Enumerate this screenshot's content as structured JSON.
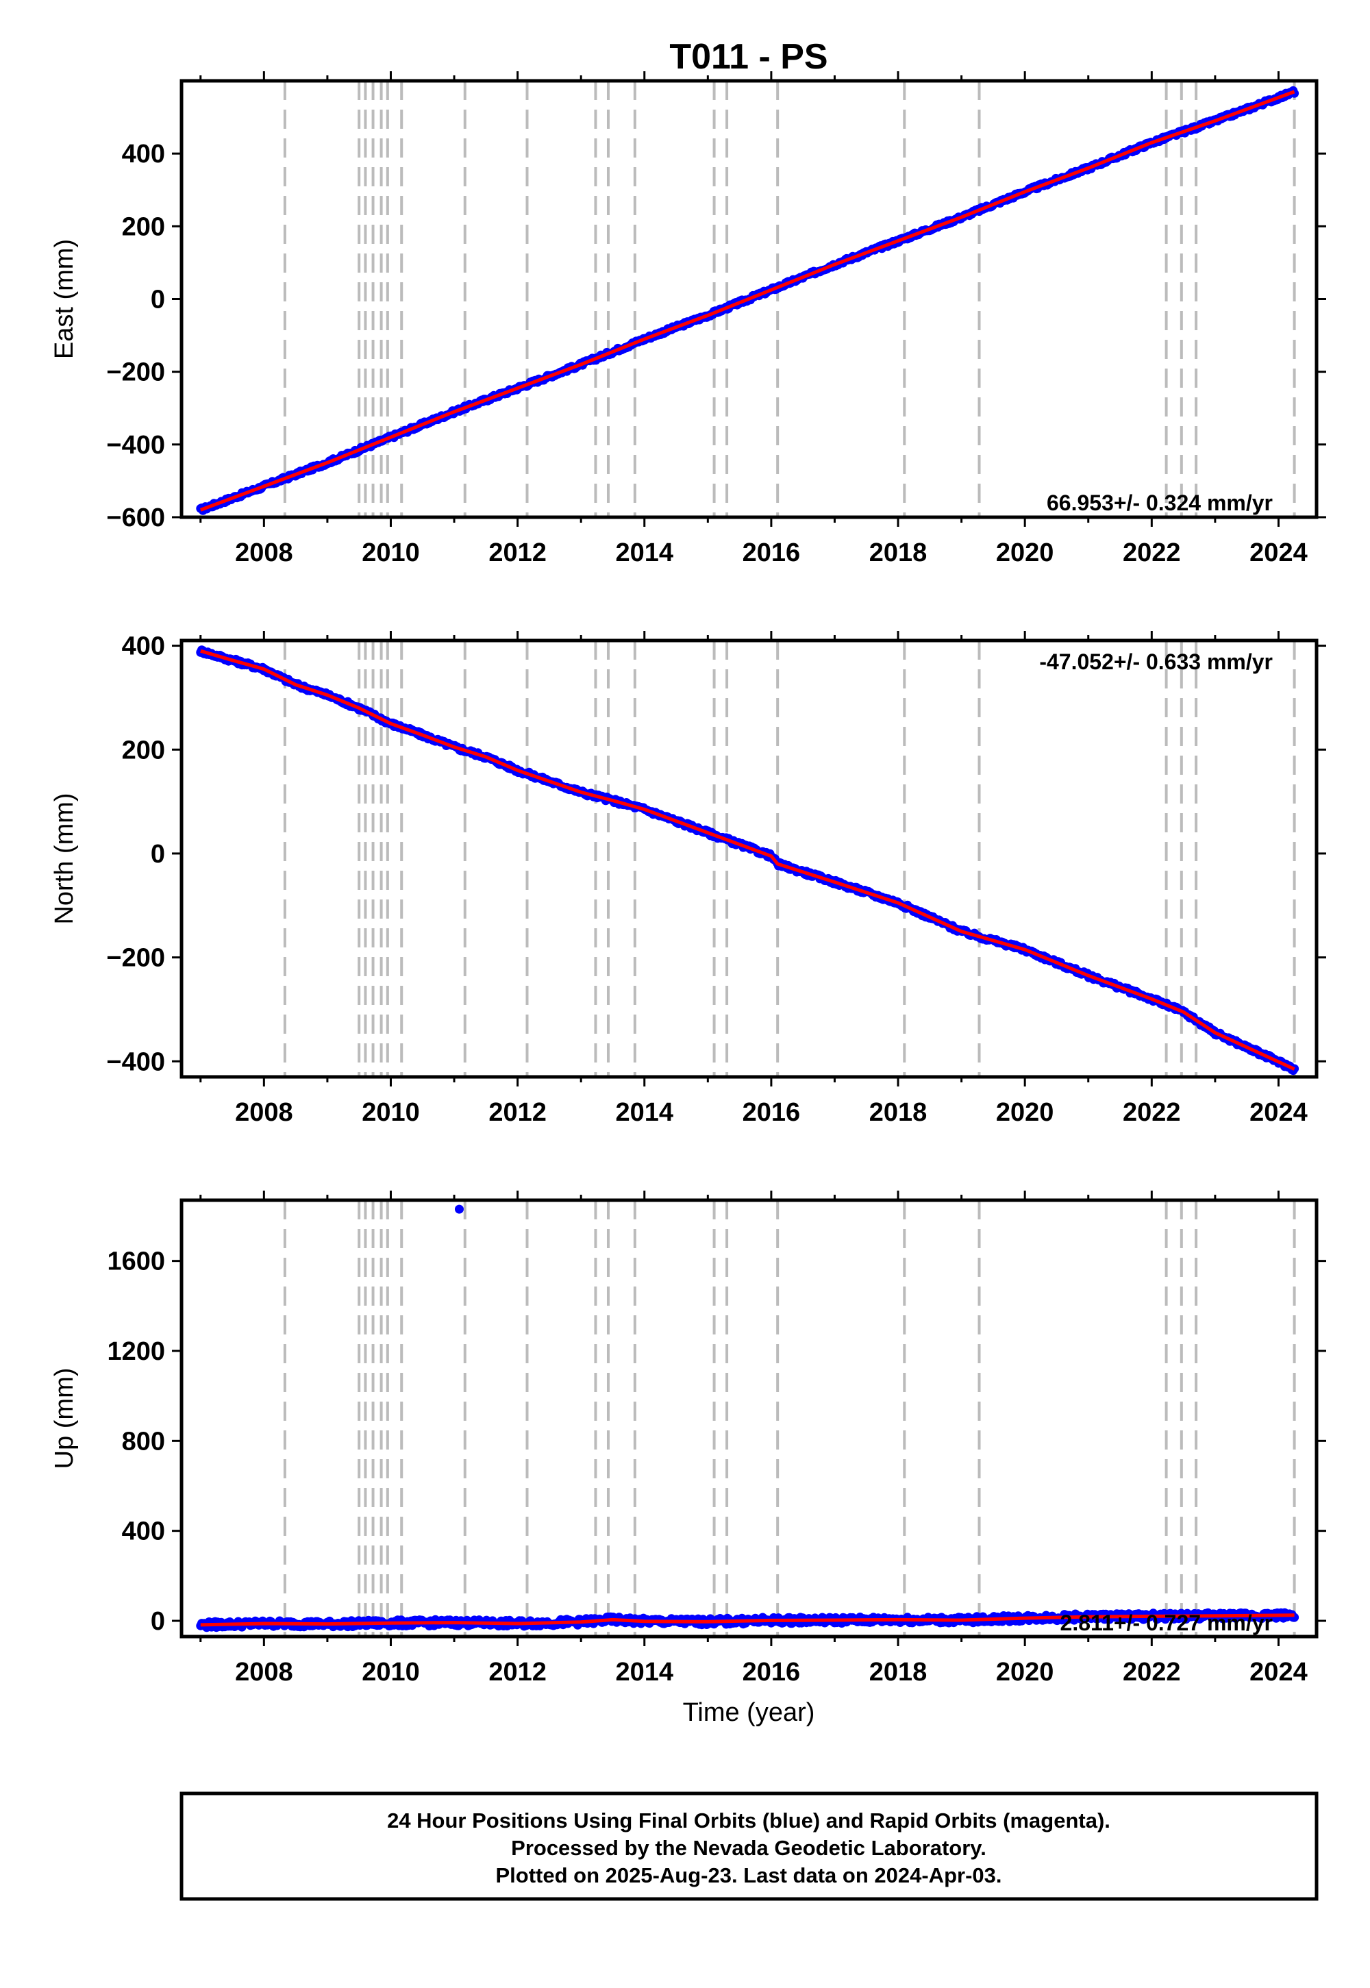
{
  "title": "T011 - PS",
  "xlabel": "Time (year)",
  "footer": {
    "line1": "24 Hour Positions Using Final Orbits (blue) and Rapid Orbits (magenta).",
    "line2": "Processed by the Nevada Geodetic Laboratory.",
    "line3": "Plotted on 2025-Aug-23. Last data on 2024-Apr-03."
  },
  "colors": {
    "final_orbits": "#0000ff",
    "model_fit": "#ff0000",
    "steps": "#bbbbbb"
  },
  "chart_data": [
    {
      "type": "scatter",
      "component": "east",
      "ylabel": "East (mm)",
      "rate_text": "66.953+/- 0.324 mm/yr",
      "xlim": [
        2006.7,
        2024.6
      ],
      "ylim": [
        -600,
        600
      ],
      "yticks": [
        -600,
        -400,
        -200,
        0,
        200,
        400
      ],
      "xticks": [
        2008,
        2010,
        2012,
        2014,
        2016,
        2018,
        2020,
        2022,
        2024
      ],
      "step_lines": [
        2008.33,
        2009.5,
        2009.6,
        2009.72,
        2009.85,
        2009.95,
        2010.17,
        2011.17,
        2012.15,
        2013.23,
        2013.43,
        2013.85,
        2015.1,
        2015.3,
        2016.1,
        2018.1,
        2019.28,
        2022.23,
        2022.47,
        2022.7,
        2024.25
      ],
      "series": [
        {
          "x": [
            2007.0,
            2008.0,
            2009.0,
            2010.0,
            2011.0,
            2012.0,
            2013.0,
            2014.0,
            2015.0,
            2016.0,
            2017.0,
            2018.0,
            2019.0,
            2020.0,
            2021.0,
            2022.0,
            2023.0,
            2024.25
          ],
          "y": [
            -580,
            -515,
            -450,
            -380,
            -310,
            -245,
            -180,
            -110,
            -45,
            25,
            95,
            160,
            225,
            295,
            360,
            430,
            490,
            570
          ]
        }
      ]
    },
    {
      "type": "scatter",
      "component": "north",
      "ylabel": "North (mm)",
      "rate_text": "-47.052+/- 0.633 mm/yr",
      "xlim": [
        2006.7,
        2024.6
      ],
      "ylim": [
        -430,
        410
      ],
      "yticks": [
        -400,
        -200,
        0,
        200,
        400
      ],
      "xticks": [
        2008,
        2010,
        2012,
        2014,
        2016,
        2018,
        2020,
        2022,
        2024
      ],
      "step_lines": [
        2008.33,
        2009.5,
        2009.6,
        2009.72,
        2009.85,
        2009.95,
        2010.17,
        2011.17,
        2012.15,
        2013.23,
        2013.43,
        2013.85,
        2015.1,
        2015.3,
        2016.1,
        2018.1,
        2019.28,
        2022.23,
        2022.47,
        2022.7,
        2024.25
      ],
      "series": [
        {
          "x": [
            2007.0,
            2007.5,
            2008.0,
            2008.5,
            2009.0,
            2009.5,
            2010.0,
            2010.5,
            2011.0,
            2011.5,
            2012.0,
            2013.0,
            2013.5,
            2014.0,
            2015.0,
            2016.0,
            2016.1,
            2017.0,
            2018.0,
            2019.0,
            2020.0,
            2021.0,
            2022.0,
            2022.5,
            2023.0,
            2024.25
          ],
          "y": [
            390,
            372,
            355,
            325,
            305,
            280,
            250,
            228,
            205,
            186,
            160,
            118,
            102,
            85,
            40,
            -5,
            -20,
            -55,
            -95,
            -150,
            -185,
            -235,
            -280,
            -305,
            -345,
            -415
          ]
        }
      ]
    },
    {
      "type": "scatter",
      "component": "up",
      "ylabel": "Up (mm)",
      "rate_text": "2.811+/- 0.727 mm/yr",
      "xlim": [
        2006.7,
        2024.6
      ],
      "ylim": [
        -70,
        1870
      ],
      "yticks": [
        0,
        400,
        800,
        1200,
        1600
      ],
      "xticks": [
        2008,
        2010,
        2012,
        2014,
        2016,
        2018,
        2020,
        2022,
        2024
      ],
      "step_lines": [
        2008.33,
        2009.5,
        2009.6,
        2009.72,
        2009.85,
        2009.95,
        2010.17,
        2011.17,
        2012.15,
        2013.23,
        2013.43,
        2013.85,
        2015.1,
        2015.3,
        2016.1,
        2018.1,
        2019.28,
        2022.23,
        2022.47,
        2022.7,
        2024.25
      ],
      "outlier": {
        "x": 2011.08,
        "y": 1830
      },
      "series": [
        {
          "x": [
            2007.0,
            2008.0,
            2009.0,
            2010.0,
            2011.0,
            2012.0,
            2013.0,
            2013.5,
            2014.0,
            2015.0,
            2016.0,
            2017.0,
            2018.0,
            2019.0,
            2020.0,
            2021.0,
            2022.0,
            2023.0,
            2024.25
          ],
          "y": [
            -18,
            -12,
            -14,
            -10,
            -8,
            -12,
            -5,
            5,
            -2,
            -4,
            2,
            3,
            5,
            3,
            12,
            18,
            20,
            22,
            25
          ]
        }
      ]
    }
  ]
}
